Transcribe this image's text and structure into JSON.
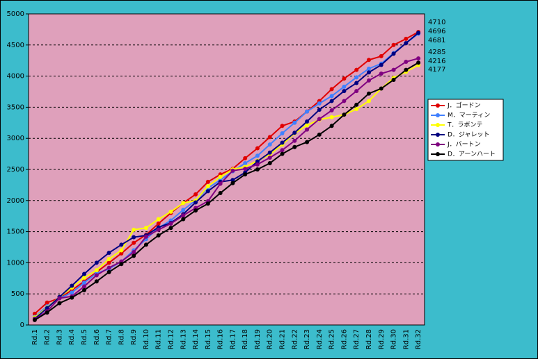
{
  "chart_data": {
    "type": "line",
    "categories": [
      "Rd.1",
      "Rd.2",
      "Rd.3",
      "Rd.4",
      "Rd.5",
      "Rd.6",
      "Rd.7",
      "Rd.8",
      "Rd.9",
      "Rd.10",
      "Rd.11",
      "Rd.12",
      "Rd.13",
      "Rd.14",
      "Rd.15",
      "Rd.16",
      "Rd.17",
      "Rd.18",
      "Rd.19",
      "Rd.20",
      "Rd.21",
      "Rd.22",
      "Rd.23",
      "Rd.24",
      "Rd.25",
      "Rd.26",
      "Rd.27",
      "Rd.28",
      "Rd.29",
      "Rd.30",
      "Rd.31",
      "Rd.32"
    ],
    "series": [
      {
        "name": "J．ゴードン",
        "color": "#e00000",
        "values": [
          180,
          360,
          430,
          560,
          700,
          850,
          1000,
          1150,
          1320,
          1450,
          1630,
          1800,
          1960,
          2100,
          2300,
          2420,
          2510,
          2680,
          2840,
          3020,
          3200,
          3270,
          3430,
          3600,
          3790,
          3960,
          4100,
          4260,
          4320,
          4500,
          4600,
          4710
        ]
      },
      {
        "name": "M．マーティン",
        "color": "#4080ff",
        "values": [
          130,
          300,
          430,
          520,
          680,
          830,
          900,
          1020,
          1200,
          1380,
          1560,
          1680,
          1850,
          2000,
          2200,
          2330,
          2470,
          2600,
          2720,
          2900,
          3080,
          3250,
          3430,
          3560,
          3680,
          3830,
          3980,
          4120,
          4200,
          4370,
          4530,
          4681
        ]
      },
      {
        "name": "T．ラボンテ",
        "color": "#ffff00",
        "values": [
          120,
          280,
          450,
          600,
          760,
          880,
          1060,
          1200,
          1530,
          1560,
          1700,
          1820,
          1960,
          2000,
          2230,
          2380,
          2500,
          2540,
          2640,
          2740,
          2900,
          3080,
          3210,
          3300,
          3340,
          3380,
          3470,
          3600,
          3800,
          3970,
          4070,
          4177
        ]
      },
      {
        "name": "D．ジャレット",
        "color": "#000080",
        "values": [
          100,
          270,
          450,
          630,
          820,
          1000,
          1160,
          1290,
          1410,
          1440,
          1570,
          1640,
          1780,
          1970,
          2150,
          2300,
          2330,
          2450,
          2630,
          2770,
          2930,
          3090,
          3270,
          3460,
          3600,
          3760,
          3890,
          4060,
          4180,
          4360,
          4530,
          4696
        ]
      },
      {
        "name": "J．バートン",
        "color": "#800080",
        "values": [
          90,
          220,
          430,
          460,
          620,
          800,
          920,
          1020,
          1170,
          1420,
          1530,
          1630,
          1760,
          1880,
          1990,
          2270,
          2480,
          2510,
          2580,
          2690,
          2810,
          2960,
          3140,
          3310,
          3450,
          3600,
          3760,
          3930,
          4040,
          4100,
          4230,
          4285
        ]
      },
      {
        "name": "D．アーンハート",
        "color": "#000000",
        "values": [
          80,
          200,
          350,
          440,
          560,
          700,
          850,
          980,
          1110,
          1290,
          1440,
          1560,
          1700,
          1840,
          1950,
          2120,
          2280,
          2420,
          2500,
          2600,
          2750,
          2860,
          2940,
          3060,
          3200,
          3380,
          3540,
          3720,
          3800,
          3940,
          4100,
          4216
        ]
      }
    ],
    "annotations": [
      "4710",
      "4696",
      "4681",
      "4285",
      "4216",
      "4177"
    ],
    "ylim": [
      0,
      5000
    ],
    "yticks": [
      0,
      500,
      1000,
      1500,
      2000,
      2500,
      3000,
      3500,
      4000,
      4500,
      5000
    ],
    "grid": true,
    "legend": "right",
    "background": "#3cbccc",
    "plot_background": "#dfa0bb"
  }
}
